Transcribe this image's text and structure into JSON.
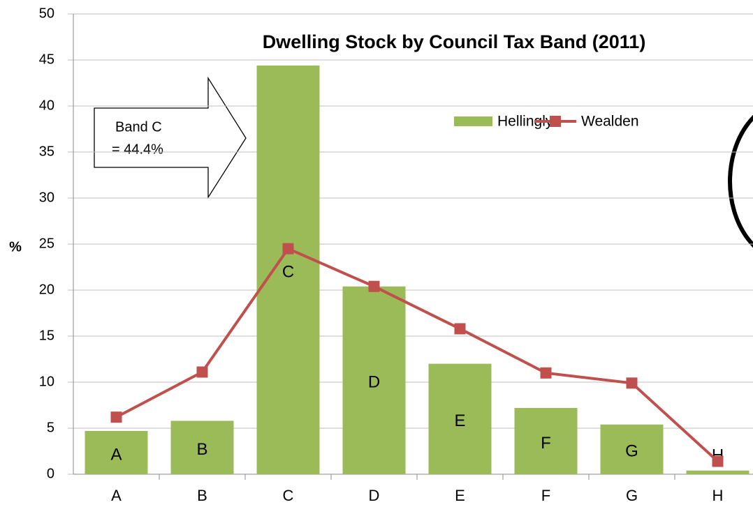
{
  "chart_data": {
    "type": "bar_line",
    "title": "Dwelling  Stock by Council Tax Band (2011)",
    "y_label": "%",
    "annotations": [
      "Band C",
      "= 44.4%"
    ],
    "categories": [
      "A",
      "B",
      "C",
      "D",
      "E",
      "F",
      "G",
      "H"
    ],
    "series": [
      {
        "name": "Hellingly",
        "type": "bar",
        "color": "#9bbb59",
        "values": [
          4.7,
          5.8,
          44.4,
          20.4,
          12.0,
          7.2,
          5.4,
          0.4
        ]
      },
      {
        "name": "Wealden",
        "type": "line",
        "color": "#c0504d",
        "values": [
          6.2,
          11.1,
          24.5,
          20.4,
          15.8,
          11.0,
          9.9,
          1.4
        ]
      }
    ],
    "ylim": [
      0,
      50
    ],
    "yticks": [
      0,
      5,
      10,
      15,
      20,
      25,
      30,
      35,
      40,
      45,
      50
    ],
    "grid": true
  }
}
